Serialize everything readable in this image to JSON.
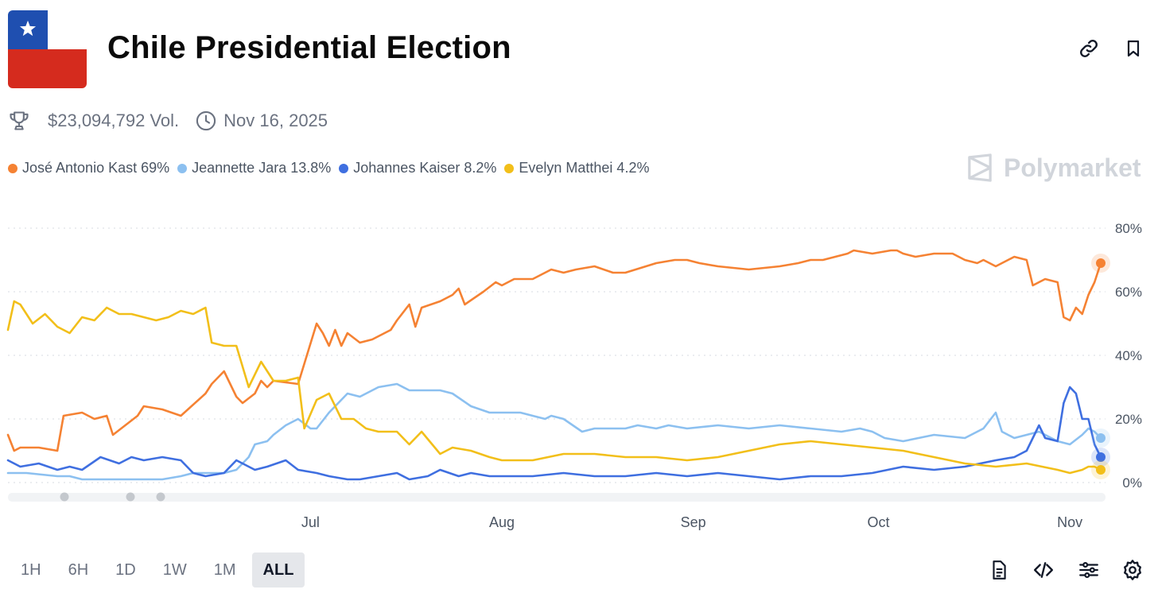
{
  "header": {
    "title": "Chile Presidential Election",
    "volume": "$23,094,792 Vol.",
    "date": "Nov 16, 2025",
    "brand": "Polymarket"
  },
  "timeframes": [
    "1H",
    "6H",
    "1D",
    "1W",
    "1M",
    "ALL"
  ],
  "active_timeframe": "ALL",
  "legend": [
    {
      "label": "José Antonio Kast 69%",
      "color": "#f58233"
    },
    {
      "label": "Jeannette Jara 13.8%",
      "color": "#8cc0f0"
    },
    {
      "label": "Johannes Kaiser 8.2%",
      "color": "#3f6fe0"
    },
    {
      "label": "Evelyn Matthei 4.2%",
      "color": "#f2bf1a"
    }
  ],
  "chart_data": {
    "type": "line",
    "title": "Chile Presidential Election",
    "xlabel": "",
    "ylabel": "",
    "x_ticks": [
      "Jul",
      "Aug",
      "Sep",
      "Oct",
      "Nov"
    ],
    "x_tick_days": [
      49,
      80,
      111,
      141,
      172
    ],
    "x_range": [
      0,
      177
    ],
    "y_ticks": [
      "0%",
      "20%",
      "40%",
      "60%",
      "80%"
    ],
    "ylim": [
      0,
      80
    ],
    "grid": true,
    "series": [
      {
        "name": "José Antonio Kast",
        "color": "#f58233",
        "x": [
          0,
          1,
          2,
          5,
          8,
          9,
          12,
          14,
          16,
          17,
          19,
          21,
          22,
          25,
          28,
          32,
          33,
          35,
          37,
          38,
          40,
          41,
          42,
          43,
          47,
          50,
          51,
          52,
          53,
          54,
          55,
          57,
          59,
          62,
          63,
          65,
          66,
          67,
          70,
          72,
          73,
          74,
          77,
          79,
          80,
          82,
          85,
          88,
          90,
          92,
          95,
          98,
          100,
          105,
          108,
          110,
          112,
          115,
          120,
          125,
          128,
          130,
          132,
          134,
          136,
          137,
          140,
          143,
          144,
          145,
          147,
          150,
          153,
          155,
          157,
          158,
          160,
          163,
          165,
          166,
          168,
          170,
          171,
          172,
          173,
          174,
          175,
          176,
          177
        ],
        "values": [
          15,
          10,
          11,
          11,
          10,
          21,
          22,
          20,
          21,
          15,
          18,
          21,
          24,
          23,
          21,
          28,
          31,
          35,
          27,
          25,
          28,
          32,
          30,
          32,
          31,
          50,
          47,
          43,
          48,
          43,
          47,
          44,
          45,
          48,
          51,
          56,
          49,
          55,
          57,
          59,
          61,
          56,
          60,
          63,
          62,
          64,
          64,
          67,
          66,
          67,
          68,
          66,
          66,
          69,
          70,
          70,
          69,
          68,
          67,
          68,
          69,
          70,
          70,
          71,
          72,
          73,
          72,
          73,
          73,
          72,
          71,
          72,
          72,
          70,
          69,
          70,
          68,
          71,
          70,
          62,
          64,
          63,
          52,
          51,
          55,
          53,
          59,
          63,
          69
        ]
      },
      {
        "name": "Jeannette Jara",
        "color": "#8cc0f0",
        "x": [
          0,
          3,
          8,
          10,
          12,
          15,
          20,
          25,
          28,
          30,
          32,
          35,
          37,
          39,
          40,
          42,
          43,
          45,
          47,
          49,
          50,
          52,
          55,
          57,
          60,
          63,
          65,
          68,
          70,
          72,
          75,
          78,
          80,
          83,
          85,
          87,
          88,
          90,
          93,
          95,
          98,
          100,
          102,
          105,
          107,
          110,
          115,
          120,
          125,
          130,
          135,
          138,
          140,
          142,
          145,
          150,
          155,
          158,
          160,
          161,
          163,
          165,
          167,
          170,
          172,
          174,
          175,
          176,
          177
        ],
        "values": [
          3,
          3,
          2,
          2,
          1,
          1,
          1,
          1,
          2,
          3,
          3,
          3,
          4,
          8,
          12,
          13,
          15,
          18,
          20,
          17,
          17,
          22,
          28,
          27,
          30,
          31,
          29,
          29,
          29,
          28,
          24,
          22,
          22,
          22,
          21,
          20,
          21,
          20,
          16,
          17,
          17,
          17,
          18,
          17,
          18,
          17,
          18,
          17,
          18,
          17,
          16,
          17,
          16,
          14,
          13,
          15,
          14,
          17,
          22,
          16,
          14,
          15,
          16,
          13,
          12,
          15,
          17,
          16,
          14
        ]
      },
      {
        "name": "Johannes Kaiser",
        "color": "#3f6fe0",
        "x": [
          0,
          2,
          5,
          8,
          10,
          12,
          15,
          18,
          20,
          22,
          25,
          28,
          30,
          32,
          35,
          37,
          40,
          42,
          45,
          47,
          50,
          52,
          55,
          57,
          60,
          63,
          65,
          68,
          70,
          73,
          75,
          78,
          80,
          85,
          90,
          95,
          100,
          105,
          110,
          115,
          120,
          125,
          130,
          135,
          140,
          145,
          150,
          155,
          160,
          163,
          165,
          167,
          168,
          170,
          171,
          172,
          173,
          174,
          175,
          176,
          177
        ],
        "values": [
          7,
          5,
          6,
          4,
          5,
          4,
          8,
          6,
          8,
          7,
          8,
          7,
          3,
          2,
          3,
          7,
          4,
          5,
          7,
          4,
          3,
          2,
          1,
          1,
          2,
          3,
          1,
          2,
          4,
          2,
          3,
          2,
          2,
          2,
          3,
          2,
          2,
          3,
          2,
          3,
          2,
          1,
          2,
          2,
          3,
          5,
          4,
          5,
          7,
          8,
          10,
          18,
          14,
          13,
          25,
          30,
          28,
          20,
          20,
          12,
          8
        ]
      },
      {
        "name": "Evelyn Matthei",
        "color": "#f2bf1a",
        "x": [
          0,
          1,
          2,
          4,
          6,
          8,
          10,
          12,
          14,
          16,
          18,
          20,
          22,
          24,
          26,
          28,
          30,
          32,
          33,
          35,
          37,
          39,
          41,
          43,
          45,
          47,
          48,
          50,
          52,
          54,
          56,
          58,
          60,
          63,
          65,
          67,
          70,
          72,
          75,
          78,
          80,
          85,
          90,
          95,
          100,
          105,
          110,
          115,
          120,
          125,
          130,
          135,
          140,
          145,
          150,
          155,
          160,
          165,
          170,
          172,
          174,
          175,
          176,
          177
        ],
        "values": [
          48,
          57,
          56,
          50,
          53,
          49,
          47,
          52,
          51,
          55,
          53,
          53,
          52,
          51,
          52,
          54,
          53,
          55,
          44,
          43,
          43,
          30,
          38,
          32,
          32,
          33,
          17,
          26,
          28,
          20,
          20,
          17,
          16,
          16,
          12,
          16,
          9,
          11,
          10,
          8,
          7,
          7,
          9,
          9,
          8,
          8,
          7,
          8,
          10,
          12,
          13,
          12,
          11,
          10,
          8,
          6,
          5,
          6,
          4,
          3,
          4,
          5,
          5,
          4
        ]
      }
    ],
    "end_markers": [
      "José Antonio Kast",
      "Jeannette Jara",
      "Johannes Kaiser",
      "Evelyn Matthei"
    ]
  },
  "icons": {
    "link": "link-icon",
    "bookmark": "bookmark-icon",
    "trophy": "trophy-icon",
    "clock": "clock-icon",
    "doc": "document-icon",
    "code": "code-icon",
    "sliders": "sliders-icon",
    "settings": "gear-icon"
  }
}
